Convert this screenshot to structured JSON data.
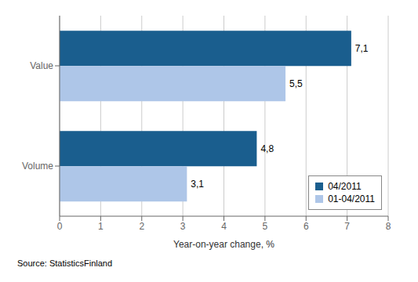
{
  "chart_data": {
    "type": "bar",
    "orientation": "horizontal",
    "categories": [
      "Volume",
      "Value"
    ],
    "series": [
      {
        "name": "04/2011",
        "color": "#1a5e8e",
        "values": [
          4.8,
          7.1
        ],
        "value_labels": [
          "4,8",
          "7,1"
        ]
      },
      {
        "name": "01-04/2011",
        "color": "#aec6e8",
        "values": [
          3.1,
          5.5
        ],
        "value_labels": [
          "3,1",
          "5,5"
        ]
      }
    ],
    "data_labels": true,
    "xlabel": "Year-on-year change, %",
    "xlim": [
      0,
      8
    ],
    "xticks": [
      0,
      1,
      2,
      3,
      4,
      5,
      6,
      7,
      8
    ],
    "grid": true,
    "legend": "lower right",
    "source": "Source: StatisticsFinland"
  }
}
